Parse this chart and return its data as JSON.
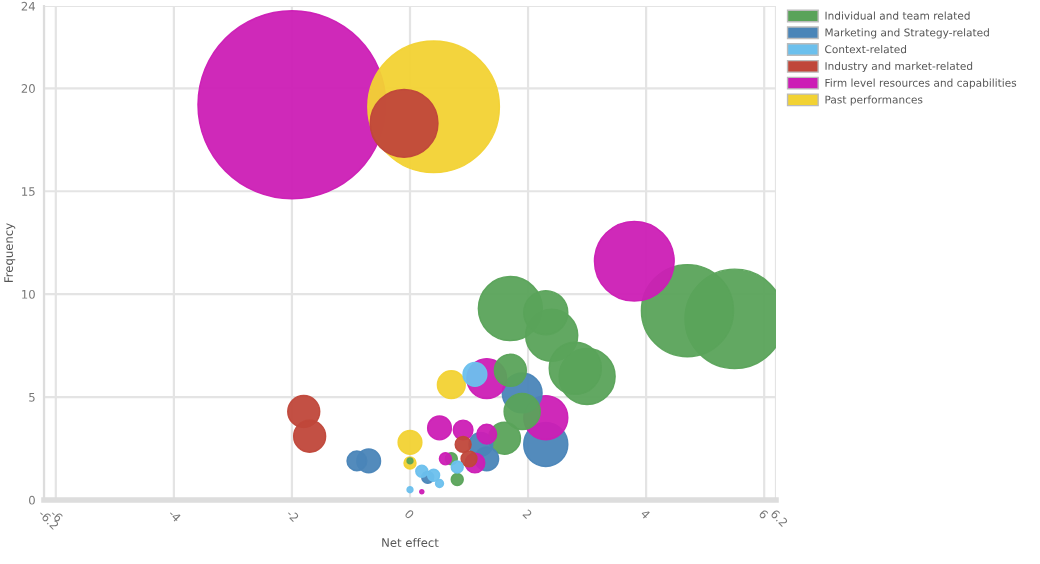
{
  "chart_data": {
    "type": "bubble",
    "xlabel": "Net effect",
    "ylabel": "Frequency",
    "xlim": [
      -6.2,
      6.2
    ],
    "xticks": [
      -6.2,
      -6,
      -4,
      -2,
      0,
      2,
      4,
      6,
      6.2
    ],
    "ylim": [
      0,
      24
    ],
    "yticks": [
      0,
      5,
      10,
      15,
      20,
      24
    ],
    "grid": true,
    "legend": "top right",
    "series": [
      {
        "name": "Individual and team related",
        "color": "#5aa35a",
        "x": [
          5.5,
          4.7,
          1.7,
          2.3,
          2.4,
          3,
          2.8,
          1.7,
          1.9,
          1.6,
          0.7,
          0.8,
          0
        ],
        "values": [
          8.8,
          9.2,
          9.3,
          9.1,
          8,
          6,
          6.4,
          6.3,
          4.3,
          3,
          2,
          1,
          1.9
        ],
        "sizes": [
          0.28,
          0.24,
          0.116,
          0.055,
          0.077,
          0.089,
          0.077,
          0.029,
          0.037,
          0.029,
          0.0041,
          0.0041,
          0.001
        ]
      },
      {
        "name": "Marketing and Strategy-related",
        "color": "#4a85b8",
        "x": [
          -0.9,
          -0.7,
          1.9,
          2.3,
          1.2,
          1.3,
          0.3
        ],
        "values": [
          1.9,
          1.9,
          5.2,
          2.7,
          2.7,
          2,
          1.1
        ],
        "sizes": [
          0.011,
          0.016,
          0.045,
          0.055,
          0.016,
          0.016,
          0.0041
        ]
      },
      {
        "name": "Context-related",
        "color": "#6cc0ed",
        "x": [
          1.1,
          0.8,
          0.2,
          0.4,
          0.5,
          0
        ],
        "values": [
          6.1,
          1.6,
          1.4,
          1.2,
          0.8,
          0.5
        ],
        "sizes": [
          0.016,
          0.0041,
          0.0041,
          0.0041,
          0.0018,
          0.001
        ]
      },
      {
        "name": "Industry and market-related",
        "color": "#c0473a",
        "x": [
          -0.1,
          -1.8,
          -1.7,
          0.9,
          1
        ],
        "values": [
          18.3,
          4.3,
          3.1,
          2.7,
          2
        ],
        "sizes": [
          0.13,
          0.029,
          0.029,
          0.0072,
          0.0072
        ]
      },
      {
        "name": "Firm level resources and capabilities",
        "color": "#cc1db5",
        "x": [
          -2,
          3.8,
          1.3,
          2.3,
          0.5,
          0.9,
          1.3,
          1.1,
          0.6,
          0.2
        ],
        "values": [
          19.2,
          11.6,
          5.9,
          4,
          3.5,
          3.4,
          3.2,
          1.8,
          2,
          0.4
        ],
        "sizes": [
          1,
          0.18,
          0.045,
          0.055,
          0.016,
          0.011,
          0.011,
          0.011,
          0.0041,
          0.0005
        ]
      },
      {
        "name": "Past performances",
        "color": "#f2d233",
        "x": [
          0.4,
          0.7,
          0,
          0
        ],
        "values": [
          19.1,
          5.6,
          2.8,
          1.8
        ],
        "sizes": [
          0.49,
          0.022,
          0.016,
          0.0041
        ]
      }
    ]
  }
}
